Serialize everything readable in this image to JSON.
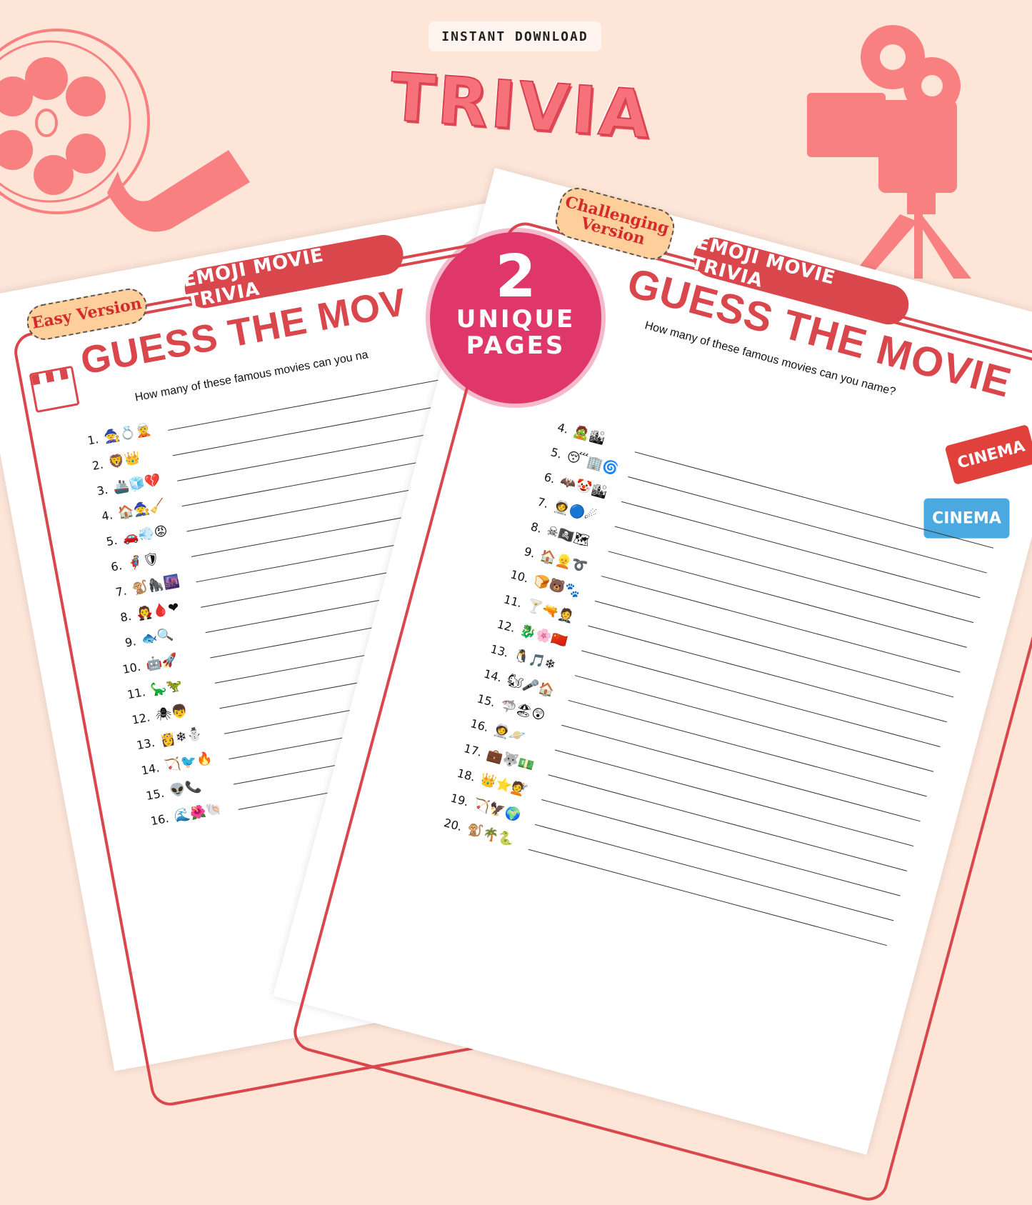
{
  "header": {
    "instant_label": "INSTANT DOWNLOAD",
    "trivia_title": "TRIVIA"
  },
  "badge": {
    "number": "2",
    "line1": "UNIQUE",
    "line2": "PAGES"
  },
  "colors": {
    "background": "#fde5d8",
    "accent_red": "#d9474d",
    "badge_pink": "#e0376a",
    "tag_fill": "#fecf9b",
    "illustration": "#f98080"
  },
  "easy_page": {
    "version": "Easy Version",
    "pill": "EMOJI MOVIE TRIVIA",
    "title": "GUESS THE MOV",
    "subtitle": "How many of these famous movies can you na",
    "items": [
      {
        "n": "1.",
        "e": "🧙💍🧝"
      },
      {
        "n": "2.",
        "e": "🦁👑"
      },
      {
        "n": "3.",
        "e": "🚢🧊💔"
      },
      {
        "n": "4.",
        "e": "🏠🧙🧹"
      },
      {
        "n": "5.",
        "e": "🚗💨😡"
      },
      {
        "n": "6.",
        "e": "🦸🛡"
      },
      {
        "n": "7.",
        "e": "🐒🦍🌆"
      },
      {
        "n": "8.",
        "e": "🧛🩸❤"
      },
      {
        "n": "9.",
        "e": "🐟🔍"
      },
      {
        "n": "10.",
        "e": "🤖🚀"
      },
      {
        "n": "11.",
        "e": "🦕🦖"
      },
      {
        "n": "12.",
        "e": "🕷👦"
      },
      {
        "n": "13.",
        "e": "👸❄⛄"
      },
      {
        "n": "14.",
        "e": "🏹🐦🔥"
      },
      {
        "n": "15.",
        "e": "👽📞"
      },
      {
        "n": "16.",
        "e": "🌊🌺🐚"
      }
    ]
  },
  "challenging_page": {
    "version": "Challenging Version",
    "pill": "EMOJI MOVIE TRIVIA",
    "title": "GUESS THE MOVIE",
    "subtitle": "How many of these famous movies can you name?",
    "ticket_text": "CINEMA",
    "items": [
      {
        "n": "4.",
        "e": "🧟🏙"
      },
      {
        "n": "5.",
        "e": "😴🏢🌀"
      },
      {
        "n": "6.",
        "e": "🦇🤡🏙"
      },
      {
        "n": "7.",
        "e": "🧑‍🚀🔵☄"
      },
      {
        "n": "8.",
        "e": "☠🏴‍☠️🗺"
      },
      {
        "n": "9.",
        "e": "🏠👱➰"
      },
      {
        "n": "10.",
        "e": "🍞🐻🐾"
      },
      {
        "n": "11.",
        "e": "🍸🔫🤵"
      },
      {
        "n": "12.",
        "e": "🐉🌸🇨🇳"
      },
      {
        "n": "13.",
        "e": "🐧🎵❄"
      },
      {
        "n": "14.",
        "e": "🐿🎤🏠"
      },
      {
        "n": "15.",
        "e": "🦈🏖😲"
      },
      {
        "n": "16.",
        "e": "🧑‍🚀🪐"
      },
      {
        "n": "17.",
        "e": "💼🐺💵"
      },
      {
        "n": "18.",
        "e": "👑⭐💇"
      },
      {
        "n": "19.",
        "e": "🏹🦅🌍"
      },
      {
        "n": "20.",
        "e": "🐒🌴🐍"
      }
    ]
  }
}
